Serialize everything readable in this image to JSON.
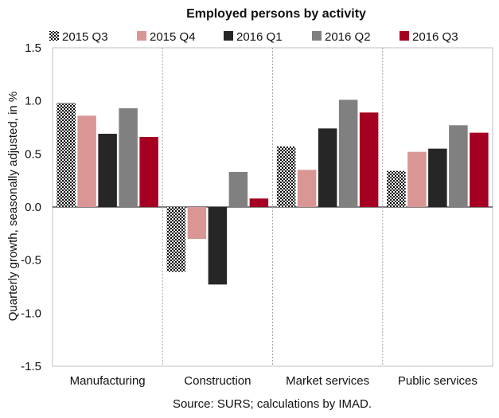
{
  "chart_data": {
    "type": "bar",
    "title": "Employed persons by activity",
    "ylabel": "Quarterly growth, seasonally adjusted, in %",
    "xlabel": "",
    "source": "Source: SURS; calculations by IMAD.",
    "categories": [
      "Manufacturing",
      "Construction",
      "Market services",
      "Public services"
    ],
    "ylim": [
      -1.5,
      1.5
    ],
    "yticks": [
      1.5,
      1.0,
      0.5,
      0.0,
      -0.5,
      -1.0,
      -1.5
    ],
    "ytick_labels": [
      "1.5",
      "1.0",
      "0.5",
      "0.0",
      "-0.5",
      "-1.0",
      "-1.5"
    ],
    "legend_position": "top",
    "grid": "vertical dotted separators between categories",
    "series": [
      {
        "name": "2015 Q3",
        "color": "#000000",
        "pattern": "checkerboard",
        "values": [
          0.98,
          -0.61,
          0.57,
          0.34
        ]
      },
      {
        "name": "2015 Q4",
        "color": "#d99694",
        "values": [
          0.86,
          -0.3,
          0.35,
          0.52
        ]
      },
      {
        "name": "2016 Q1",
        "color": "#262626",
        "values": [
          0.69,
          -0.73,
          0.74,
          0.55
        ]
      },
      {
        "name": "2016 Q2",
        "color": "#808080",
        "values": [
          0.93,
          0.33,
          1.01,
          0.77
        ]
      },
      {
        "name": "2016 Q3",
        "color": "#a50021",
        "values": [
          0.66,
          0.08,
          0.89,
          0.7
        ]
      }
    ]
  }
}
